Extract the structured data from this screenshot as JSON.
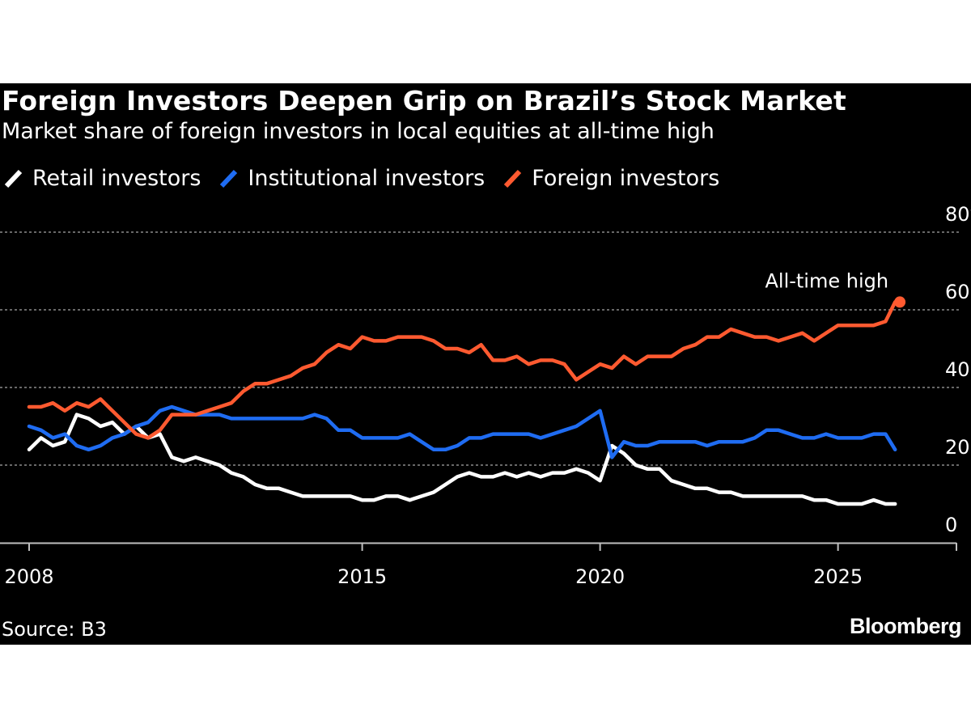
{
  "header": {
    "title": "Foreign Investors Deepen Grip on Brazil’s Stock Market",
    "subtitle": "Market share of foreign investors in local equities at all-time high"
  },
  "legend": [
    {
      "label": "Retail investors",
      "color": "#ffffff"
    },
    {
      "label": "Institutional investors",
      "color": "#1f6cf2"
    },
    {
      "label": "Foreign investors",
      "color": "#ff5a30"
    }
  ],
  "footer": {
    "source": "Source: B3",
    "brand": "Bloomberg"
  },
  "chart_data": {
    "type": "line",
    "title": "Foreign Investors Deepen Grip on Brazil’s Stock Market",
    "subtitle": "Market share of foreign investors in local equities at all-time high",
    "xlabel": "",
    "ylabel": "",
    "x_range": [
      2008,
      2027.2
    ],
    "x_ticks": [
      2008,
      2015,
      2020,
      2025
    ],
    "x_tick_labels": [
      "2008",
      "2015",
      "2020",
      "2025"
    ],
    "ylim": [
      0,
      80
    ],
    "y_ticks": [
      0,
      20,
      40,
      60,
      80
    ],
    "y_tick_labels": [
      "0",
      "20",
      "40",
      "60",
      "80%"
    ],
    "grid": true,
    "annotation": {
      "text": "All-time high",
      "x": 2026.3,
      "y": 62
    },
    "series": [
      {
        "name": "Retail investors",
        "color": "#ffffff",
        "x": [
          2008.0,
          2008.25,
          2008.5,
          2008.75,
          2009.0,
          2009.25,
          2009.5,
          2009.75,
          2010.0,
          2010.25,
          2010.5,
          2010.75,
          2011.0,
          2011.25,
          2011.5,
          2011.75,
          2012.0,
          2012.25,
          2012.5,
          2012.75,
          2013.0,
          2013.25,
          2013.5,
          2013.75,
          2014.0,
          2014.25,
          2014.5,
          2014.75,
          2015.0,
          2015.25,
          2015.5,
          2015.75,
          2016.0,
          2016.25,
          2016.5,
          2016.75,
          2017.0,
          2017.25,
          2017.5,
          2017.75,
          2018.0,
          2018.25,
          2018.5,
          2018.75,
          2019.0,
          2019.25,
          2019.5,
          2019.75,
          2020.0,
          2020.25,
          2020.5,
          2020.75,
          2021.0,
          2021.25,
          2021.5,
          2021.75,
          2022.0,
          2022.25,
          2022.5,
          2022.75,
          2023.0,
          2023.25,
          2023.5,
          2023.75,
          2024.0,
          2024.25,
          2024.5,
          2024.75,
          2025.0,
          2025.25,
          2025.5,
          2025.75,
          2026.0,
          2026.2
        ],
        "values": [
          24,
          27,
          25,
          26,
          33,
          32,
          30,
          31,
          28,
          30,
          27,
          28,
          22,
          21,
          22,
          21,
          20,
          18,
          17,
          15,
          14,
          14,
          13,
          12,
          12,
          12,
          12,
          12,
          11,
          11,
          12,
          12,
          11,
          12,
          13,
          15,
          17,
          18,
          17,
          17,
          18,
          17,
          18,
          17,
          18,
          18,
          19,
          18,
          16,
          25,
          23,
          20,
          19,
          19,
          16,
          15,
          14,
          14,
          13,
          13,
          12,
          12,
          12,
          12,
          12,
          12,
          11,
          11,
          10,
          10,
          10,
          11,
          10,
          10
        ]
      },
      {
        "name": "Institutional investors",
        "color": "#1f6cf2",
        "x": [
          2008.0,
          2008.25,
          2008.5,
          2008.75,
          2009.0,
          2009.25,
          2009.5,
          2009.75,
          2010.0,
          2010.25,
          2010.5,
          2010.75,
          2011.0,
          2011.25,
          2011.5,
          2011.75,
          2012.0,
          2012.25,
          2012.5,
          2012.75,
          2013.0,
          2013.25,
          2013.5,
          2013.75,
          2014.0,
          2014.25,
          2014.5,
          2014.75,
          2015.0,
          2015.25,
          2015.5,
          2015.75,
          2016.0,
          2016.25,
          2016.5,
          2016.75,
          2017.0,
          2017.25,
          2017.5,
          2017.75,
          2018.0,
          2018.25,
          2018.5,
          2018.75,
          2019.0,
          2019.25,
          2019.5,
          2019.75,
          2020.0,
          2020.25,
          2020.5,
          2020.75,
          2021.0,
          2021.25,
          2021.5,
          2021.75,
          2022.0,
          2022.25,
          2022.5,
          2022.75,
          2023.0,
          2023.25,
          2023.5,
          2023.75,
          2024.0,
          2024.25,
          2024.5,
          2024.75,
          2025.0,
          2025.25,
          2025.5,
          2025.75,
          2026.0,
          2026.2
        ],
        "values": [
          30,
          29,
          27,
          28,
          25,
          24,
          25,
          27,
          28,
          30,
          31,
          34,
          35,
          34,
          33,
          33,
          33,
          32,
          32,
          32,
          32,
          32,
          32,
          32,
          33,
          32,
          29,
          29,
          27,
          27,
          27,
          27,
          28,
          26,
          24,
          24,
          25,
          27,
          27,
          28,
          28,
          28,
          28,
          27,
          28,
          29,
          30,
          32,
          34,
          22,
          26,
          25,
          25,
          26,
          26,
          26,
          26,
          25,
          26,
          26,
          26,
          27,
          29,
          29,
          28,
          27,
          27,
          28,
          27,
          27,
          27,
          28,
          28,
          24
        ]
      },
      {
        "name": "Foreign investors",
        "color": "#ff5a30",
        "x": [
          2008.0,
          2008.25,
          2008.5,
          2008.75,
          2009.0,
          2009.25,
          2009.5,
          2009.75,
          2010.0,
          2010.25,
          2010.5,
          2010.75,
          2011.0,
          2011.25,
          2011.5,
          2011.75,
          2012.0,
          2012.25,
          2012.5,
          2012.75,
          2013.0,
          2013.25,
          2013.5,
          2013.75,
          2014.0,
          2014.25,
          2014.5,
          2014.75,
          2015.0,
          2015.25,
          2015.5,
          2015.75,
          2016.0,
          2016.25,
          2016.5,
          2016.75,
          2017.0,
          2017.25,
          2017.5,
          2017.75,
          2018.0,
          2018.25,
          2018.5,
          2018.75,
          2019.0,
          2019.25,
          2019.5,
          2019.75,
          2020.0,
          2020.25,
          2020.5,
          2020.75,
          2021.0,
          2021.25,
          2021.5,
          2021.75,
          2022.0,
          2022.25,
          2022.5,
          2022.75,
          2023.0,
          2023.25,
          2023.5,
          2023.75,
          2024.0,
          2024.25,
          2024.5,
          2024.75,
          2025.0,
          2025.25,
          2025.5,
          2025.75,
          2026.0,
          2026.2
        ],
        "values": [
          35,
          35,
          36,
          34,
          36,
          35,
          37,
          34,
          31,
          28,
          27,
          29,
          33,
          33,
          33,
          34,
          35,
          36,
          39,
          41,
          41,
          42,
          43,
          45,
          46,
          49,
          51,
          50,
          53,
          52,
          52,
          53,
          53,
          53,
          52,
          50,
          50,
          49,
          51,
          47,
          47,
          48,
          46,
          47,
          47,
          46,
          42,
          44,
          46,
          45,
          48,
          46,
          48,
          48,
          48,
          50,
          51,
          53,
          53,
          55,
          54,
          53,
          53,
          52,
          53,
          54,
          52,
          54,
          56,
          56,
          56,
          56,
          57,
          62
        ]
      }
    ]
  }
}
